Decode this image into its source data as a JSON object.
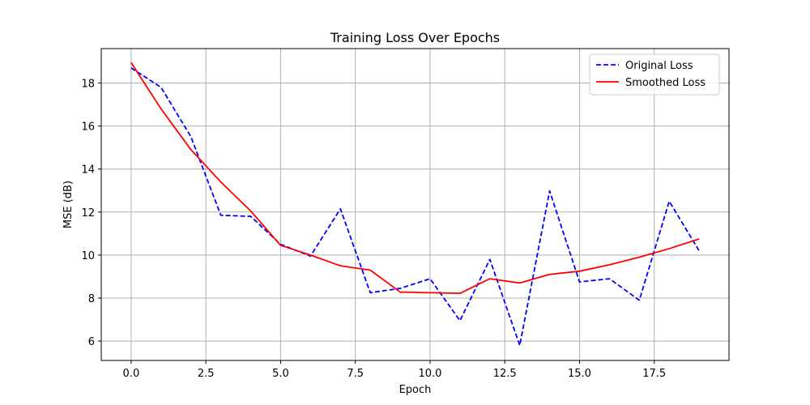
{
  "chart_data": {
    "type": "line",
    "title": "Training Loss Over Epochs",
    "xlabel": "Epoch",
    "ylabel": "MSE (dB)",
    "xlim": [
      -1,
      20
    ],
    "ylim": [
      5.1,
      19.6
    ],
    "xticks": [
      0.0,
      2.5,
      5.0,
      7.5,
      10.0,
      12.5,
      15.0,
      17.5
    ],
    "xtick_labels": [
      "0.0",
      "2.5",
      "5.0",
      "7.5",
      "10.0",
      "12.5",
      "15.0",
      "17.5"
    ],
    "yticks": [
      6,
      8,
      10,
      12,
      14,
      16,
      18
    ],
    "ytick_labels": [
      "6",
      "8",
      "10",
      "12",
      "14",
      "16",
      "18"
    ],
    "grid": true,
    "legend_position": "top-right",
    "x": [
      0,
      1,
      2,
      3,
      4,
      5,
      6,
      7,
      8,
      9,
      10,
      11,
      12,
      13,
      14,
      15,
      16,
      17,
      18,
      19
    ],
    "series": [
      {
        "name": "Original Loss",
        "color": "#0000ff",
        "style": "dashed",
        "values": [
          18.7,
          17.8,
          15.5,
          11.85,
          11.8,
          10.5,
          9.95,
          12.15,
          8.25,
          8.45,
          8.9,
          6.95,
          9.8,
          5.8,
          12.98,
          8.75,
          8.9,
          7.9,
          12.5,
          10.2
        ]
      },
      {
        "name": "Smoothed Loss",
        "color": "#ff0000",
        "style": "solid",
        "values": [
          18.95,
          16.8,
          14.9,
          13.4,
          12.05,
          10.45,
          10.0,
          9.5,
          9.3,
          8.28,
          8.25,
          8.22,
          8.9,
          8.7,
          9.1,
          9.25,
          9.55,
          9.9,
          10.3,
          10.75
        ]
      }
    ]
  }
}
